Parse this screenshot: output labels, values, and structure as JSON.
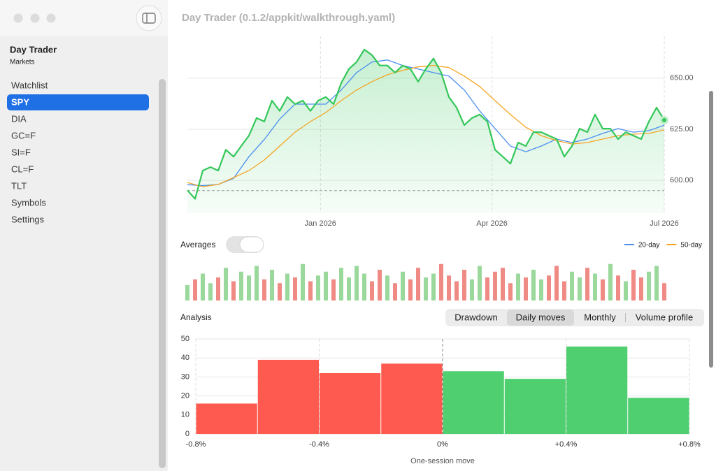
{
  "window": {
    "title": "Day Trader (0.1.2/appkit/walkthrough.yaml)"
  },
  "sidebar": {
    "title": "Day Trader",
    "subtitle": "Markets",
    "items": [
      "Watchlist",
      "SPY",
      "DIA",
      "GC=F",
      "SI=F",
      "CL=F",
      "TLT",
      "Symbols",
      "Settings"
    ],
    "selected": 1
  },
  "price_chart": {
    "type": "line",
    "color": "#34c759",
    "x": [
      0,
      1,
      2,
      3,
      4,
      5,
      6,
      7,
      8,
      9,
      10,
      11,
      12,
      13,
      14,
      15,
      16,
      17,
      18,
      19,
      20,
      21,
      22,
      23,
      24,
      25,
      26,
      27,
      28,
      29,
      30,
      31,
      32,
      33,
      34,
      35,
      36,
      37,
      38,
      39,
      40,
      41,
      42,
      43,
      44,
      45,
      46,
      47,
      48,
      49,
      50,
      51,
      52,
      53,
      54,
      55,
      56,
      57,
      58,
      59,
      60,
      61,
      62
    ],
    "values": [
      595.2,
      591,
      604.8,
      606.5,
      604.8,
      615,
      611.6,
      616.8,
      621.9,
      630.5,
      628.8,
      639,
      634,
      640.8,
      637.3,
      639,
      634,
      639,
      640.8,
      637.3,
      647.6,
      654.5,
      657.9,
      664,
      661.3,
      656.2,
      656.2,
      652.7,
      656.2,
      654.5,
      648.3,
      654.5,
      659.6,
      652.7,
      640.8,
      635.6,
      627,
      630.5,
      632.2,
      628.8,
      615,
      611.6,
      608.2,
      618.5,
      616.8,
      623.6,
      623.6,
      621.9,
      620.2,
      611.6,
      616.8,
      625.3,
      623.6,
      632.2,
      625.3,
      625.3,
      620.2,
      623.6,
      621.9,
      620.2,
      628.8,
      635.6,
      629.5
    ],
    "series": [
      {
        "name": "20-day",
        "color": "#4a8ff0",
        "x": [
          0,
          2,
          4,
          6,
          8,
          10,
          12,
          14,
          16,
          18,
          20,
          22,
          24,
          26,
          28,
          30,
          32,
          34,
          36,
          38,
          40,
          42,
          44,
          46,
          48,
          50,
          52,
          54,
          56,
          58,
          60,
          62
        ],
        "values": [
          597.9,
          597.5,
          598,
          601,
          611.6,
          620,
          630,
          637.3,
          637.3,
          637.3,
          644.2,
          652.7,
          657.9,
          658.9,
          656.2,
          654.5,
          652.7,
          651,
          644.2,
          634,
          625.3,
          616.8,
          614,
          616.8,
          620.2,
          618.5,
          620.2,
          623,
          625.3,
          623.6,
          624.3,
          627
        ]
      },
      {
        "name": "50-day",
        "color": "#f5a623",
        "x": [
          0,
          2,
          4,
          6,
          8,
          10,
          12,
          14,
          16,
          18,
          20,
          22,
          24,
          26,
          28,
          30,
          32,
          34,
          36,
          38,
          40,
          42,
          44,
          46,
          48,
          50,
          52,
          54,
          56,
          58,
          60,
          62
        ],
        "values": [
          599,
          596.9,
          598,
          601.4,
          604.8,
          610,
          616.8,
          623.6,
          628.8,
          633.2,
          639,
          644.2,
          648.3,
          651.7,
          653.8,
          655.5,
          656.2,
          655.2,
          651,
          645.9,
          639,
          632.2,
          626,
          621.9,
          619.5,
          617.8,
          618.5,
          620.2,
          621.9,
          622.6,
          623,
          624.7
        ]
      }
    ],
    "reference": 595,
    "xlim": [
      0,
      62
    ],
    "ylim": [
      584,
      666
    ],
    "xticks": [
      {
        "value": 17.3,
        "label": "Jan 2026"
      },
      {
        "value": 39.6,
        "label": "Apr 2026"
      },
      {
        "value": 62,
        "label": "Jul 2026"
      }
    ],
    "yticks": [
      {
        "value": 600,
        "label": "600.00"
      },
      {
        "value": 625,
        "label": "625.00"
      },
      {
        "value": 650,
        "label": "650.00"
      }
    ],
    "grid": true
  },
  "averages_label": "Averages",
  "volume": {
    "type": "bar",
    "up_color": "#9bd89c",
    "down_color": "#ef8a85",
    "ylim": [
      0,
      100
    ],
    "values": [
      40,
      55,
      70,
      45,
      60,
      85,
      50,
      75,
      65,
      90,
      55,
      80,
      45,
      70,
      60,
      95,
      50,
      65,
      75,
      55,
      85,
      60,
      90,
      70,
      50,
      80,
      65,
      45,
      75,
      55,
      85,
      60,
      70,
      95,
      65,
      50,
      80,
      55,
      90,
      60,
      75,
      85,
      45,
      70,
      60,
      80,
      55,
      65,
      90,
      50,
      75,
      60,
      85,
      70,
      55,
      95,
      65,
      50,
      80,
      60,
      75,
      90,
      45
    ]
  },
  "analysis": {
    "title": "Analysis",
    "tabs": [
      "Drawdown",
      "Daily moves",
      "Monthly",
      "Volume profile"
    ],
    "selected_tab": 1
  },
  "histogram": {
    "type": "histogram",
    "bins": [
      -0.8,
      -0.6,
      -0.4,
      -0.2,
      0,
      0.2,
      0.4,
      0.6,
      0.8
    ],
    "values": [
      16,
      39,
      32,
      37,
      33,
      29,
      46,
      19
    ],
    "negative_color": "#ff5a4f",
    "positive_color": "#4fcf6f",
    "xlim": [
      -0.8,
      0.8
    ],
    "ylim": [
      0,
      50
    ],
    "xticks": [
      {
        "value": -0.8,
        "label": "-0.8%"
      },
      {
        "value": -0.4,
        "label": "-0.4%"
      },
      {
        "value": 0,
        "label": "0%"
      },
      {
        "value": 0.4,
        "label": "+0.4%"
      },
      {
        "value": 0.8,
        "label": "+0.8%"
      }
    ],
    "yticks": [
      0,
      10,
      20,
      30,
      40,
      50
    ],
    "xlabel": "One-session move",
    "grid": true
  }
}
